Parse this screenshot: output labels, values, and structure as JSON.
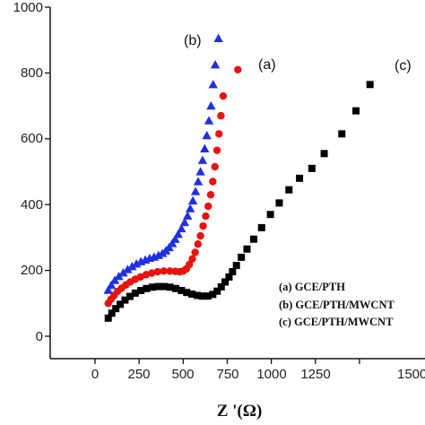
{
  "chart_data": {
    "type": "scatter",
    "xlabel": "Z '(Ω)",
    "ylabel": "",
    "xlim": [
      -100,
      1550
    ],
    "ylim": [
      -80,
      1000
    ],
    "xticks": [
      "0",
      "250",
      "500",
      "750",
      "1000",
      "1250",
      "1500"
    ],
    "yticks": [
      "0",
      "200",
      "400",
      "600",
      "800",
      "1000"
    ],
    "legend": [
      "(a) GCE/PTH",
      "(b) GCE/PTH/MWCNT",
      "(c) GCE/PTH/MWCNT"
    ],
    "annotations": [
      "(a)",
      "(b)",
      "(c)"
    ],
    "series": [
      {
        "name": "(a) GCE/PTH",
        "marker": "circle",
        "color": "#e8120e",
        "points": [
          [
            75,
            100
          ],
          [
            90,
            112
          ],
          [
            108,
            124
          ],
          [
            128,
            136
          ],
          [
            150,
            146
          ],
          [
            175,
            156
          ],
          [
            200,
            165
          ],
          [
            228,
            173
          ],
          [
            258,
            180
          ],
          [
            290,
            187
          ],
          [
            322,
            192
          ],
          [
            355,
            196
          ],
          [
            390,
            198
          ],
          [
            425,
            198
          ],
          [
            455,
            197
          ],
          [
            480,
            196
          ],
          [
            500,
            198
          ],
          [
            518,
            205
          ],
          [
            535,
            218
          ],
          [
            552,
            235
          ],
          [
            568,
            255
          ],
          [
            584,
            280
          ],
          [
            598,
            305
          ],
          [
            613,
            335
          ],
          [
            628,
            365
          ],
          [
            642,
            395
          ],
          [
            656,
            430
          ],
          [
            668,
            470
          ],
          [
            680,
            515
          ],
          [
            692,
            565
          ],
          [
            703,
            615
          ],
          [
            714,
            670
          ],
          [
            727,
            730
          ],
          [
            810,
            810
          ]
        ]
      },
      {
        "name": "(b) GCE/PTH/MWCNT",
        "marker": "triangle",
        "color": "#1f2fe6",
        "points": [
          [
            75,
            140
          ],
          [
            92,
            155
          ],
          [
            112,
            170
          ],
          [
            135,
            182
          ],
          [
            160,
            193
          ],
          [
            185,
            203
          ],
          [
            210,
            212
          ],
          [
            235,
            220
          ],
          [
            260,
            227
          ],
          [
            285,
            232
          ],
          [
            310,
            237
          ],
          [
            335,
            241
          ],
          [
            360,
            246
          ],
          [
            382,
            252
          ],
          [
            402,
            260
          ],
          [
            420,
            270
          ],
          [
            438,
            282
          ],
          [
            455,
            295
          ],
          [
            472,
            310
          ],
          [
            490,
            327
          ],
          [
            508,
            346
          ],
          [
            525,
            366
          ],
          [
            540,
            388
          ],
          [
            555,
            412
          ],
          [
            570,
            440
          ],
          [
            585,
            470
          ],
          [
            598,
            500
          ],
          [
            610,
            535
          ],
          [
            622,
            570
          ],
          [
            634,
            610
          ],
          [
            646,
            655
          ],
          [
            658,
            700
          ],
          [
            670,
            765
          ],
          [
            682,
            825
          ],
          [
            700,
            905
          ]
        ]
      },
      {
        "name": "(c) GCE/PTH/MWCNT",
        "marker": "square",
        "color": "#000000",
        "points": [
          [
            75,
            55
          ],
          [
            95,
            70
          ],
          [
            118,
            84
          ],
          [
            143,
            97
          ],
          [
            170,
            110
          ],
          [
            198,
            121
          ],
          [
            228,
            131
          ],
          [
            260,
            139
          ],
          [
            292,
            145
          ],
          [
            325,
            149
          ],
          [
            358,
            151
          ],
          [
            392,
            151
          ],
          [
            425,
            149
          ],
          [
            458,
            145
          ],
          [
            490,
            139
          ],
          [
            520,
            133
          ],
          [
            550,
            128
          ],
          [
            580,
            124
          ],
          [
            610,
            122
          ],
          [
            640,
            122
          ],
          [
            668,
            127
          ],
          [
            693,
            137
          ],
          [
            716,
            150
          ],
          [
            738,
            165
          ],
          [
            760,
            180
          ],
          [
            780,
            196
          ],
          [
            802,
            215
          ],
          [
            830,
            240
          ],
          [
            862,
            265
          ],
          [
            900,
            295
          ],
          [
            945,
            330
          ],
          [
            995,
            370
          ],
          [
            1045,
            405
          ],
          [
            1100,
            445
          ],
          [
            1160,
            480
          ],
          [
            1230,
            510
          ],
          [
            1300,
            555
          ],
          [
            1400,
            615
          ],
          [
            1480,
            685
          ],
          [
            1560,
            765
          ]
        ]
      }
    ]
  }
}
